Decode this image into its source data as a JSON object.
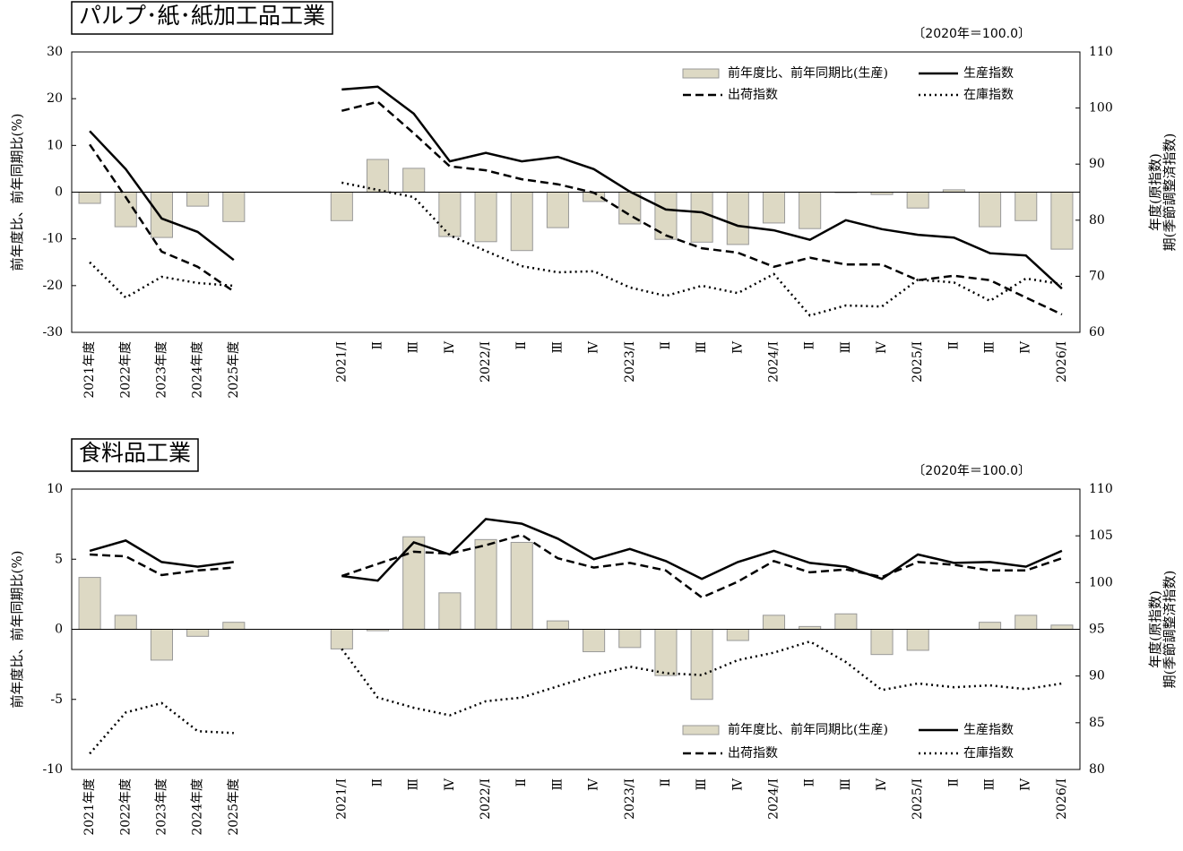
{
  "chart_data": [
    {
      "type": "combo",
      "title": "パルプ･紙･紙加工品工業",
      "note": "〔2020年＝100.0〕",
      "ylabel": "前年度比、前年同期比(%)",
      "y2label": [
        "年度(原指数)",
        "期(季節調整済指数)"
      ],
      "categories": [
        "2021年度",
        "2022年度",
        "2023年度",
        "2024年度",
        "2025年度",
        null,
        null,
        "2021/Ⅰ",
        "Ⅱ",
        "Ⅲ",
        "Ⅳ",
        "2022/Ⅰ",
        "Ⅱ",
        "Ⅲ",
        "Ⅳ",
        "2023/Ⅰ",
        "Ⅱ",
        "Ⅲ",
        "Ⅳ",
        "2024/Ⅰ",
        "Ⅱ",
        "Ⅲ",
        "Ⅳ",
        "2025/Ⅰ",
        "Ⅱ",
        "Ⅲ",
        "Ⅳ",
        "2026/Ⅰ"
      ],
      "series": [
        {
          "name": "前年度比、前年同期比(生産)",
          "type": "bar",
          "color": "#ddd9c4",
          "values": [
            -2.4,
            -7.4,
            -9.7,
            -3.0,
            -6.3,
            null,
            null,
            -6.1,
            7.0,
            5.1,
            -9.5,
            -10.6,
            -12.5,
            -7.6,
            -2.0,
            -6.8,
            -10.1,
            -10.7,
            -11.2,
            -6.6,
            -7.8,
            -0.1,
            -0.5,
            -3.4,
            0.5,
            -7.4,
            -6.1,
            -12.2
          ]
        },
        {
          "name": "生産指数",
          "type": "line",
          "dash": "solid",
          "color": "#000000",
          "axis": "y2",
          "values": [
            95.9,
            89.1,
            80.3,
            77.9,
            72.9,
            null,
            null,
            103.3,
            103.8,
            99.0,
            90.5,
            92.0,
            90.5,
            91.3,
            89.1,
            85.1,
            81.9,
            81.4,
            79.0,
            78.2,
            76.5,
            80.0,
            78.4,
            77.4,
            76.9,
            74.1,
            73.7,
            67.8
          ]
        },
        {
          "name": "出荷指数",
          "type": "line",
          "dash": "dashed",
          "color": "#000000",
          "axis": "y2",
          "values": [
            93.5,
            84.1,
            74.4,
            71.7,
            67.3,
            null,
            null,
            99.5,
            101.1,
            95.5,
            89.6,
            88.9,
            87.3,
            86.4,
            84.9,
            80.9,
            77.3,
            75.0,
            74.2,
            71.7,
            73.3,
            72.1,
            72.1,
            69.3,
            70.1,
            69.3,
            66.2,
            63.2
          ]
        },
        {
          "name": "在庫指数",
          "type": "line",
          "dash": "dotted",
          "color": "#000000",
          "axis": "y2",
          "values": [
            72.5,
            66.2,
            69.9,
            68.8,
            68.3,
            null,
            null,
            86.7,
            85.4,
            84.1,
            77.3,
            74.5,
            71.8,
            70.7,
            70.9,
            68.0,
            66.5,
            68.3,
            67.0,
            70.4,
            63.0,
            64.8,
            64.6,
            69.4,
            68.9,
            65.6,
            69.6,
            68.6
          ]
        }
      ],
      "ylim": [
        -30,
        30
      ],
      "yticks": [
        -30,
        -20,
        -10,
        0,
        10,
        20,
        30
      ],
      "y2lim": [
        60,
        110
      ],
      "y2ticks": [
        60,
        70,
        80,
        90,
        100,
        110
      ],
      "legend": "upper right"
    },
    {
      "type": "combo",
      "title": "食料品工業",
      "note": "〔2020年＝100.0〕",
      "ylabel": "前年度比、前年同期比(%)",
      "y2label": [
        "年度(原指数)",
        "期(季節調整済指数)"
      ],
      "categories": [
        "2021年度",
        "2022年度",
        "2023年度",
        "2024年度",
        "2025年度",
        null,
        null,
        "2021/Ⅰ",
        "Ⅱ",
        "Ⅲ",
        "Ⅳ",
        "2022/Ⅰ",
        "Ⅱ",
        "Ⅲ",
        "Ⅳ",
        "2023/Ⅰ",
        "Ⅱ",
        "Ⅲ",
        "Ⅳ",
        "2024/Ⅰ",
        "Ⅱ",
        "Ⅲ",
        "Ⅳ",
        "2025/Ⅰ",
        "Ⅱ",
        "Ⅲ",
        "Ⅳ",
        "2026/Ⅰ"
      ],
      "series": [
        {
          "name": "前年度比、前年同期比(生産)",
          "type": "bar",
          "color": "#ddd9c4",
          "values": [
            3.7,
            1.0,
            -2.2,
            -0.5,
            0.5,
            null,
            null,
            -1.4,
            -0.1,
            6.6,
            2.6,
            6.4,
            6.2,
            0.6,
            -1.6,
            -1.3,
            -3.3,
            -5.0,
            -0.8,
            1.0,
            0.2,
            1.1,
            -1.8,
            -1.5,
            0.0,
            0.5,
            1.0,
            0.3
          ]
        },
        {
          "name": "生産指数",
          "type": "line",
          "dash": "solid",
          "color": "#000000",
          "axis": "y2",
          "values": [
            103.4,
            104.5,
            102.2,
            101.7,
            102.2,
            null,
            null,
            100.7,
            100.2,
            104.3,
            103.0,
            106.8,
            106.3,
            104.7,
            102.5,
            103.6,
            102.3,
            100.4,
            102.2,
            103.4,
            102.1,
            101.7,
            100.4,
            103.0,
            102.1,
            102.2,
            101.7,
            103.4
          ]
        },
        {
          "name": "出荷指数",
          "type": "line",
          "dash": "dashed",
          "color": "#000000",
          "axis": "y2",
          "values": [
            103.0,
            102.8,
            100.8,
            101.3,
            101.6,
            null,
            null,
            100.7,
            102.0,
            103.3,
            103.1,
            104.0,
            105.1,
            102.6,
            101.6,
            102.1,
            101.3,
            98.4,
            100.1,
            102.3,
            101.1,
            101.4,
            100.6,
            102.2,
            101.9,
            101.3,
            101.3,
            102.6
          ]
        },
        {
          "name": "在庫指数",
          "type": "line",
          "dash": "dotted",
          "color": "#000000",
          "axis": "y2",
          "values": [
            81.7,
            86.1,
            87.1,
            84.1,
            83.9,
            null,
            null,
            92.9,
            87.7,
            86.6,
            85.8,
            87.3,
            87.7,
            88.9,
            90.1,
            91.0,
            90.3,
            90.1,
            91.7,
            92.5,
            93.7,
            91.5,
            88.5,
            89.2,
            88.8,
            89.0,
            88.6,
            89.2
          ]
        }
      ],
      "ylim": [
        -10,
        10
      ],
      "yticks": [
        -10,
        -5,
        0,
        5,
        10
      ],
      "y2lim": [
        80,
        110
      ],
      "y2ticks": [
        80,
        85,
        90,
        95,
        100,
        105,
        110
      ],
      "legend": "lower right"
    }
  ]
}
